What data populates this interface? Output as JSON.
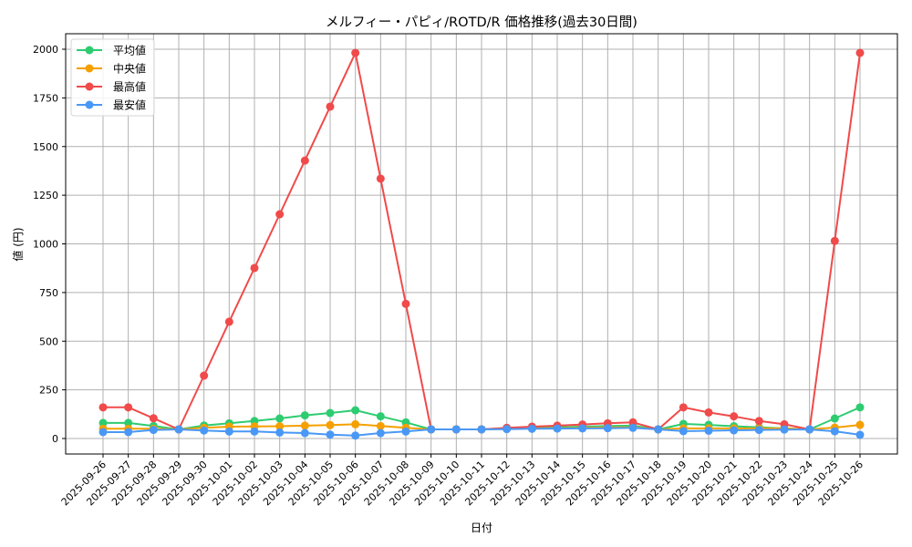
{
  "chart_data": {
    "type": "line",
    "title": "メルフィー・パピィ/ROTD/R 価格推移(過去30日間)",
    "xlabel": "日付",
    "ylabel": "値 (円)",
    "ylim": [
      -75,
      2075
    ],
    "yticks": [
      0,
      250,
      500,
      750,
      1000,
      1250,
      1500,
      1750,
      2000
    ],
    "grid": true,
    "legend_position": "upper left",
    "x": [
      "2025-09-26",
      "2025-09-27",
      "2025-09-28",
      "2025-09-29",
      "2025-09-30",
      "2025-10-01",
      "2025-10-02",
      "2025-10-03",
      "2025-10-04",
      "2025-10-05",
      "2025-10-06",
      "2025-10-07",
      "2025-10-08",
      "2025-10-09",
      "2025-10-10",
      "2025-10-11",
      "2025-10-12",
      "2025-10-13",
      "2025-10-14",
      "2025-10-15",
      "2025-10-16",
      "2025-10-17",
      "2025-10-18",
      "2025-10-19",
      "2025-10-20",
      "2025-10-21",
      "2025-10-22",
      "2025-10-23",
      "2025-10-24",
      "2025-10-25",
      "2025-10-26"
    ],
    "series": [
      {
        "name": "平均値",
        "color": "#2ecc71",
        "values": [
          80,
          80,
          64,
          47,
          67,
          78,
          90,
          103,
          119,
          131,
          145,
          114,
          83,
          47,
          47,
          47,
          52,
          55,
          58,
          61,
          64,
          66,
          47,
          75,
          70,
          63,
          57,
          52,
          47,
          103,
          160
        ]
      },
      {
        "name": "中央値",
        "color": "#f5a000",
        "values": [
          50,
          50,
          50,
          47,
          55,
          61,
          62,
          63,
          66,
          69,
          73,
          64,
          55,
          47,
          47,
          47,
          50,
          52,
          53,
          55,
          57,
          58,
          47,
          52,
          52,
          52,
          52,
          52,
          47,
          56,
          70
        ]
      },
      {
        "name": "最高値",
        "color": "#f04a4a",
        "values": [
          160,
          160,
          104,
          47,
          323,
          600,
          876,
          1152,
          1428,
          1705,
          1981,
          1335,
          692,
          47,
          47,
          47,
          55,
          61,
          66,
          72,
          78,
          83,
          47,
          160,
          134,
          114,
          90,
          73,
          47,
          1015,
          1981
        ]
      },
      {
        "name": "最安値",
        "color": "#4a98f5",
        "values": [
          33,
          33,
          44,
          47,
          41,
          36,
          36,
          31,
          28,
          20,
          15,
          28,
          36,
          47,
          47,
          47,
          48,
          50,
          51,
          52,
          53,
          55,
          47,
          38,
          40,
          42,
          44,
          46,
          47,
          37,
          19
        ]
      }
    ]
  }
}
